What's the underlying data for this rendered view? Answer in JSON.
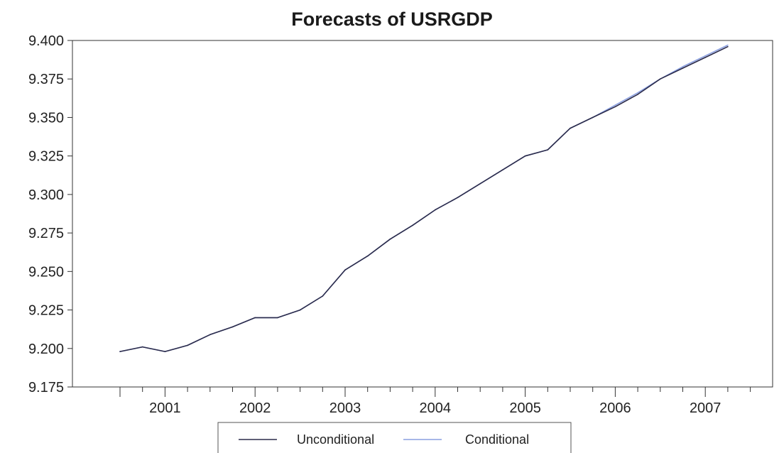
{
  "chart_data": {
    "type": "line",
    "title": "Forecasts of USRGDP",
    "xlabel": "",
    "ylabel": "",
    "ylim": [
      9.175,
      9.4
    ],
    "y_ticks": [
      "9.175",
      "9.200",
      "9.225",
      "9.250",
      "9.275",
      "9.300",
      "9.325",
      "9.350",
      "9.375",
      "9.400"
    ],
    "x_period_start": "2000Q3",
    "x_years": [
      "2001",
      "2002",
      "2003",
      "2004",
      "2005",
      "2006",
      "2007"
    ],
    "quarters": [
      "2000Q3",
      "2000Q4",
      "2001Q1",
      "2001Q2",
      "2001Q3",
      "2001Q4",
      "2002Q1",
      "2002Q2",
      "2002Q3",
      "2002Q4",
      "2003Q1",
      "2003Q2",
      "2003Q3",
      "2003Q4",
      "2004Q1",
      "2004Q2",
      "2004Q3",
      "2004Q4",
      "2005Q1",
      "2005Q2",
      "2005Q3",
      "2005Q4",
      "2006Q1",
      "2006Q2",
      "2006Q3",
      "2006Q4",
      "2007Q1",
      "2007Q2"
    ],
    "grid": false,
    "legend_position": "bottom",
    "series": [
      {
        "name": "Unconditional",
        "color": "#2b2b4a",
        "values": [
          9.198,
          9.201,
          9.198,
          9.202,
          9.209,
          9.214,
          9.22,
          9.22,
          9.225,
          9.234,
          9.251,
          9.26,
          9.271,
          9.28,
          9.29,
          9.298,
          9.307,
          9.316,
          9.325,
          9.329,
          9.343,
          9.35,
          9.357,
          9.365,
          9.375,
          9.382,
          9.389,
          9.396
        ]
      },
      {
        "name": "Conditional",
        "color": "#8a9fe0",
        "values": [
          9.198,
          9.201,
          9.198,
          9.202,
          9.209,
          9.214,
          9.22,
          9.22,
          9.225,
          9.234,
          9.251,
          9.26,
          9.271,
          9.28,
          9.29,
          9.298,
          9.307,
          9.316,
          9.325,
          9.329,
          9.343,
          9.35,
          9.358,
          9.366,
          9.375,
          9.383,
          9.39,
          9.397
        ]
      }
    ]
  }
}
